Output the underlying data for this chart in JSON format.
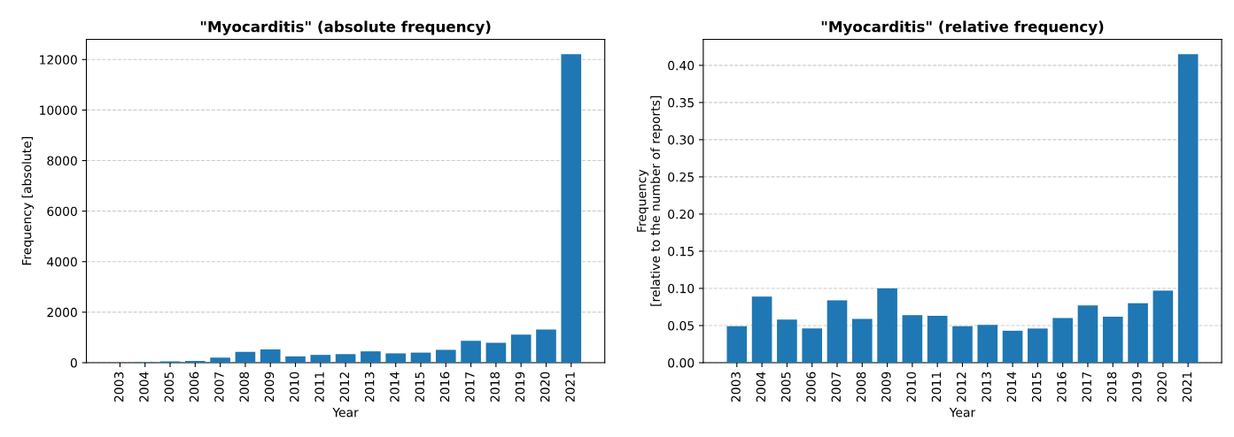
{
  "chart_data": [
    {
      "type": "bar",
      "title": "\"Myocarditis\" (absolute frequency)",
      "xlabel": "Year",
      "ylabel": "Frequency [absolute]",
      "categories": [
        "2003",
        "2004",
        "2005",
        "2006",
        "2007",
        "2008",
        "2009",
        "2010",
        "2011",
        "2012",
        "2013",
        "2014",
        "2015",
        "2016",
        "2017",
        "2018",
        "2019",
        "2020",
        "2021"
      ],
      "values": [
        5,
        20,
        50,
        70,
        200,
        430,
        525,
        250,
        310,
        340,
        450,
        370,
        400,
        510,
        865,
        790,
        1110,
        1310,
        12210
      ],
      "color": "#1f77b4",
      "ylim": [
        0,
        12800
      ],
      "yticks": [
        0,
        2000,
        4000,
        6000,
        8000,
        10000,
        12000
      ],
      "grid": "y"
    },
    {
      "type": "bar",
      "title": "\"Myocarditis\" (relative frequency)",
      "xlabel": "Year",
      "ylabel": "Frequency\n[relative to the number of reports]",
      "categories": [
        "2003",
        "2004",
        "2005",
        "2006",
        "2007",
        "2008",
        "2009",
        "2010",
        "2011",
        "2012",
        "2013",
        "2014",
        "2015",
        "2016",
        "2017",
        "2018",
        "2019",
        "2020",
        "2021"
      ],
      "values": [
        0.049,
        0.089,
        0.058,
        0.046,
        0.084,
        0.059,
        0.1,
        0.064,
        0.063,
        0.049,
        0.051,
        0.043,
        0.046,
        0.06,
        0.077,
        0.062,
        0.08,
        0.097,
        0.415
      ],
      "color": "#1f77b4",
      "ylim": [
        0,
        0.435
      ],
      "yticks": [
        {
          "value": 0,
          "label": "0.00"
        },
        {
          "value": 0.05,
          "label": "0.05"
        },
        {
          "value": 0.1,
          "label": "0.10"
        },
        {
          "value": 0.15,
          "label": "0.15"
        },
        {
          "value": 0.2,
          "label": "0.20"
        },
        {
          "value": 0.25,
          "label": "0.25"
        },
        {
          "value": 0.3,
          "label": "0.30"
        },
        {
          "value": 0.35,
          "label": "0.35"
        },
        {
          "value": 0.4,
          "label": "0.40"
        }
      ],
      "grid": "y"
    }
  ]
}
